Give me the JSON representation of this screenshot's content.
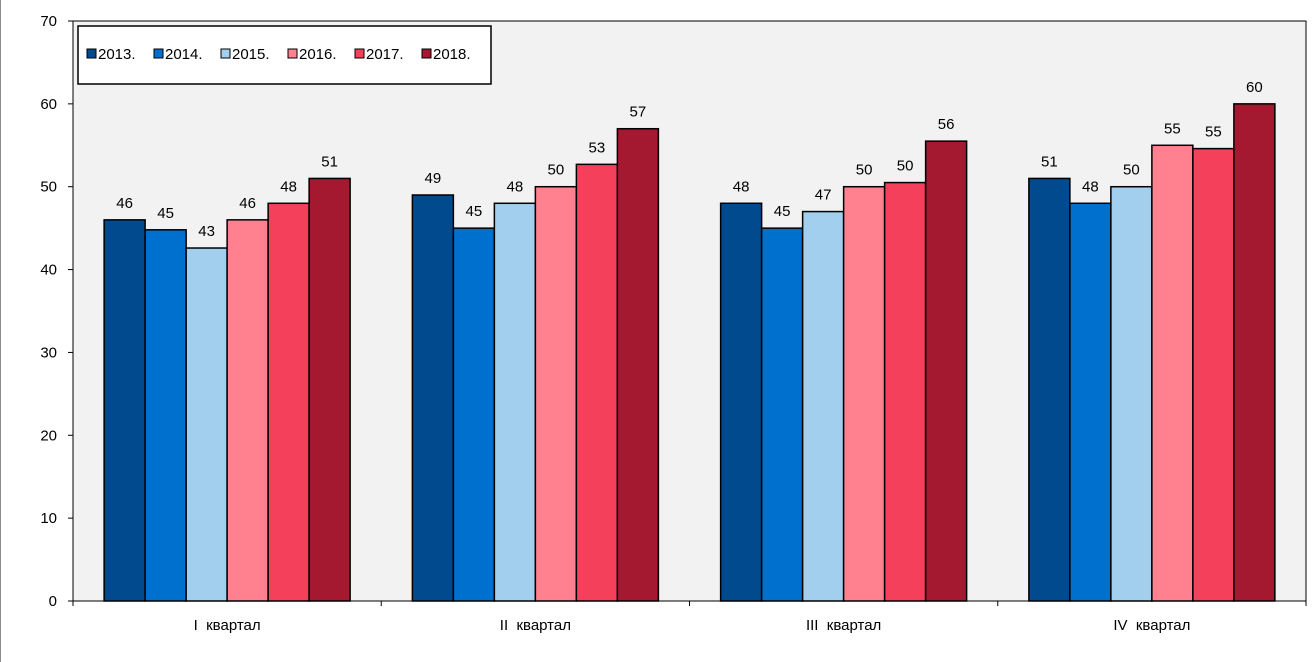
{
  "chart_data": {
    "type": "bar",
    "title": "",
    "xlabel": "",
    "ylabel": "",
    "categories": [
      "I  квартал",
      "II  квартал",
      "III  квартал",
      "IV  квартал"
    ],
    "ylim": [
      0,
      70
    ],
    "yticks": [
      0,
      10,
      20,
      30,
      40,
      50,
      60,
      70
    ],
    "grid": false,
    "legend_position": "top-left",
    "series": [
      {
        "name": "2013.",
        "color": "#004A8D",
        "values": [
          46,
          49,
          48,
          51
        ],
        "labels": [
          "46",
          "49",
          "48",
          "51"
        ]
      },
      {
        "name": "2014.",
        "color": "#0070CE",
        "values": [
          44.8,
          45,
          45,
          48
        ],
        "labels": [
          "45",
          "45",
          "45",
          "48"
        ]
      },
      {
        "name": "2015.",
        "color": "#A3CFEF",
        "values": [
          42.6,
          48,
          47,
          50
        ],
        "labels": [
          "43",
          "48",
          "47",
          "50"
        ]
      },
      {
        "name": "2016.",
        "color": "#FF808F",
        "values": [
          46,
          50,
          50,
          55
        ],
        "labels": [
          "46",
          "50",
          "50",
          "55"
        ]
      },
      {
        "name": "2017.",
        "color": "#F5405B",
        "values": [
          48,
          52.7,
          50.5,
          54.6
        ],
        "labels": [
          "48",
          "53",
          "50",
          "55"
        ]
      },
      {
        "name": "2018.",
        "color": "#A41830",
        "values": [
          51,
          57,
          55.5,
          60
        ],
        "labels": [
          "51",
          "57",
          "56",
          "60"
        ]
      }
    ],
    "plot_background": "#F2F2F2"
  }
}
